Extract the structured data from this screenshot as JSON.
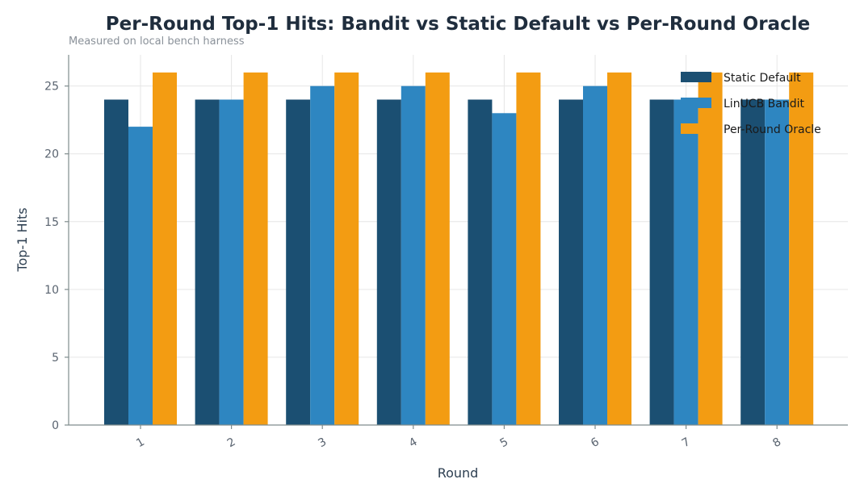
{
  "chart_data": {
    "type": "bar",
    "title": "Per-Round Top-1 Hits: Bandit vs Static Default vs Per-Round Oracle",
    "subtitle": "Measured on local bench harness",
    "xlabel": "Round",
    "ylabel": "Top-1 Hits",
    "categories": [
      "1",
      "2",
      "3",
      "4",
      "5",
      "6",
      "7",
      "8"
    ],
    "ylim": [
      0,
      27.3
    ],
    "yticks": [
      0,
      5,
      10,
      15,
      20,
      25
    ],
    "grid": true,
    "legend_position": "top-right",
    "series": [
      {
        "name": "Static Default",
        "color": "#1b4f72",
        "values": [
          24,
          24,
          24,
          24,
          24,
          24,
          24,
          24
        ]
      },
      {
        "name": "LinUCB Bandit",
        "color": "#2e86c1",
        "values": [
          22,
          24,
          25,
          25,
          23,
          25,
          24,
          24
        ]
      },
      {
        "name": "Per-Round Oracle",
        "color": "#f39c12",
        "values": [
          26,
          26,
          26,
          26,
          26,
          26,
          26,
          26
        ]
      }
    ]
  }
}
